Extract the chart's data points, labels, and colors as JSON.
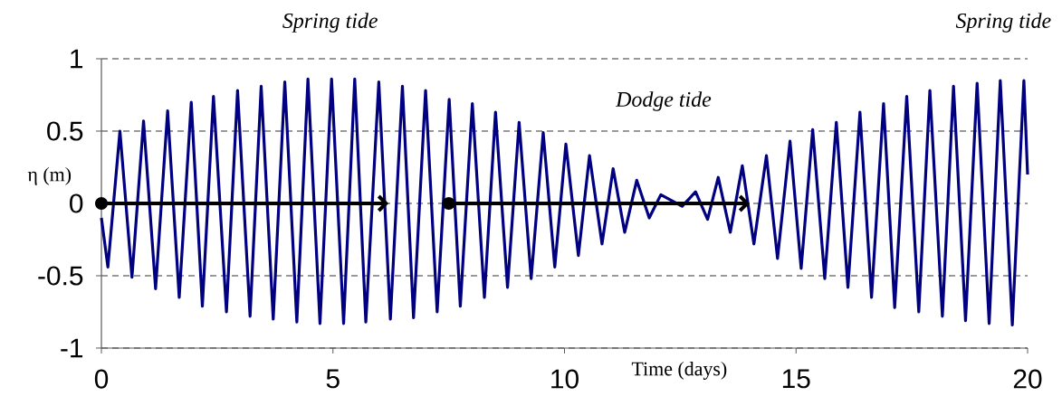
{
  "chart_data": {
    "type": "line",
    "xlabel": "Time (days)",
    "ylabel": "η (m)",
    "annotations": [
      "Spring tide",
      "Spring tide",
      "Dodge tide"
    ],
    "x": [
      0,
      0.14,
      0.4,
      0.66,
      0.91,
      1.17,
      1.43,
      1.68,
      1.94,
      2.18,
      2.42,
      2.7,
      2.94,
      3.21,
      3.45,
      3.71,
      3.96,
      4.22,
      4.46,
      4.72,
      4.97,
      5.23,
      5.47,
      5.71,
      5.99,
      6.24,
      6.5,
      6.74,
      7.0,
      7.25,
      7.51,
      7.75,
      8.01,
      8.27,
      8.51,
      8.77,
      9.02,
      9.28,
      9.54,
      9.79,
      10.03,
      10.3,
      10.54,
      10.81,
      11.05,
      11.3,
      11.56,
      11.83,
      12.08,
      12.54,
      12.83,
      13.09,
      13.32,
      13.58,
      13.84,
      14.09,
      14.36,
      14.6,
      14.87,
      15.11,
      15.36,
      15.62,
      15.87,
      16.12,
      16.38,
      16.63,
      16.89,
      17.13,
      17.39,
      17.65,
      17.89,
      18.16,
      18.4,
      18.66,
      18.91,
      19.17,
      19.41,
      19.67,
      19.92,
      20
    ],
    "series": [
      {
        "color": "#000080",
        "values": [
          -0.1,
          -0.44,
          0.5,
          -0.51,
          0.57,
          -0.59,
          0.64,
          -0.65,
          0.7,
          -0.71,
          0.74,
          -0.75,
          0.78,
          -0.78,
          0.81,
          -0.8,
          0.84,
          -0.82,
          0.86,
          -0.83,
          0.86,
          -0.83,
          0.86,
          -0.82,
          0.84,
          -0.8,
          0.81,
          -0.79,
          0.78,
          -0.75,
          0.72,
          -0.71,
          0.69,
          -0.65,
          0.63,
          -0.58,
          0.56,
          -0.52,
          0.49,
          -0.44,
          0.41,
          -0.36,
          0.33,
          -0.28,
          0.24,
          -0.2,
          0.16,
          -0.1,
          0.06,
          -0.02,
          0.08,
          -0.11,
          0.18,
          -0.2,
          0.26,
          -0.28,
          0.33,
          -0.38,
          0.43,
          -0.45,
          0.51,
          -0.52,
          0.56,
          -0.58,
          0.63,
          -0.65,
          0.69,
          -0.72,
          0.74,
          -0.75,
          0.78,
          -0.78,
          0.81,
          -0.81,
          0.83,
          -0.83,
          0.85,
          -0.84,
          0.85,
          0.2
        ]
      }
    ],
    "xlim": [
      0,
      20
    ],
    "xticks": [
      0,
      5,
      10,
      15,
      20
    ],
    "ylim": [
      -1,
      1
    ],
    "yticks": [
      -1,
      -0.5,
      0,
      0.5,
      1
    ],
    "grid": "y",
    "marker": "none",
    "line_style": "solid"
  }
}
